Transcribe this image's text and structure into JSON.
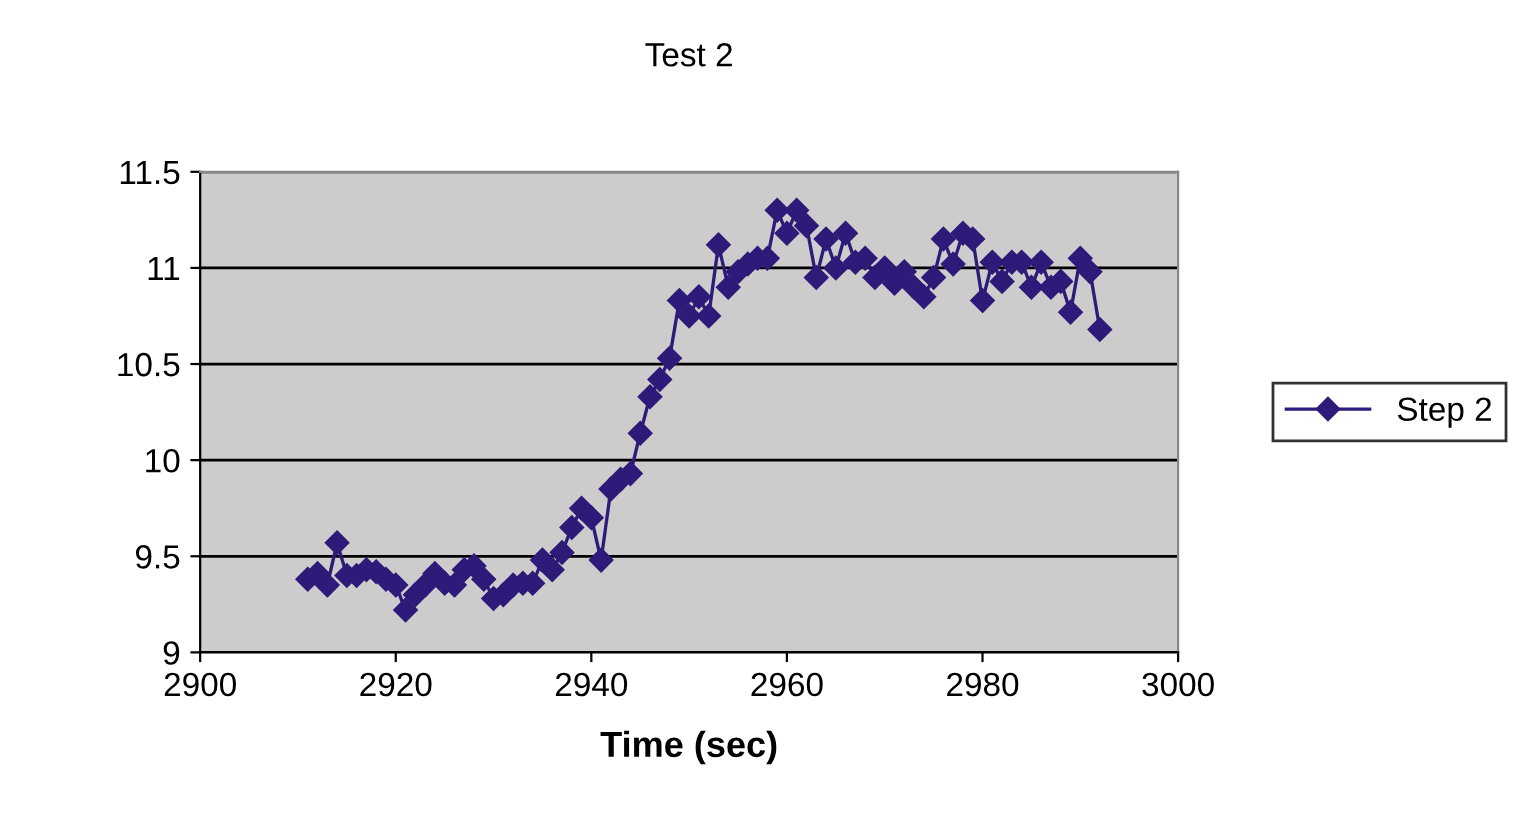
{
  "chart_data": {
    "type": "line",
    "title": "Test 2",
    "xlabel": "Time (sec)",
    "xlim": [
      2900,
      3000
    ],
    "xticks": [
      2900,
      2920,
      2940,
      2960,
      2980,
      3000
    ],
    "ylim": [
      9,
      11.5
    ],
    "yticks": [
      9,
      9.5,
      10,
      10.5,
      11,
      11.5
    ],
    "grid": "y",
    "legend": "right",
    "marker": "diamond",
    "line_style": "solid",
    "series": [
      {
        "name": "Step 2",
        "color": "#2e1a78",
        "x": [
          2911,
          2912,
          2913,
          2914,
          2915,
          2916,
          2917,
          2918,
          2919,
          2920,
          2921,
          2922,
          2923,
          2924,
          2925,
          2926,
          2927,
          2928,
          2929,
          2930,
          2931,
          2932,
          2933,
          2934,
          2935,
          2936,
          2937,
          2938,
          2939,
          2940,
          2941,
          2942,
          2943,
          2944,
          2945,
          2946,
          2947,
          2948,
          2949,
          2950,
          2951,
          2952,
          2953,
          2954,
          2955,
          2956,
          2957,
          2958,
          2959,
          2960,
          2961,
          2962,
          2963,
          2964,
          2965,
          2966,
          2967,
          2968,
          2969,
          2970,
          2971,
          2972,
          2973,
          2974,
          2975,
          2976,
          2977,
          2978,
          2979,
          2980,
          2981,
          2982,
          2983,
          2984,
          2985,
          2986,
          2987,
          2988,
          2989,
          2990,
          2991,
          2992
        ],
        "values": [
          9.38,
          9.41,
          9.35,
          9.57,
          9.4,
          9.4,
          9.43,
          9.42,
          9.38,
          9.35,
          9.22,
          9.3,
          9.35,
          9.41,
          9.36,
          9.35,
          9.43,
          9.45,
          9.38,
          9.28,
          9.3,
          9.35,
          9.36,
          9.36,
          9.48,
          9.43,
          9.52,
          9.65,
          9.75,
          9.7,
          9.48,
          9.85,
          9.9,
          9.93,
          10.14,
          10.33,
          10.42,
          10.53,
          10.83,
          10.75,
          10.85,
          10.75,
          11.12,
          10.9,
          10.98,
          11.02,
          11.05,
          11.05,
          11.3,
          11.18,
          11.3,
          11.22,
          10.95,
          11.15,
          11.0,
          11.18,
          11.03,
          11.05,
          10.95,
          11.0,
          10.92,
          10.98,
          10.9,
          10.85,
          10.95,
          11.15,
          11.02,
          11.18,
          11.15,
          10.83,
          11.03,
          10.93,
          11.03,
          11.03,
          10.9,
          11.03,
          10.9,
          10.93,
          10.77,
          11.05,
          10.98,
          10.68
        ]
      }
    ]
  }
}
